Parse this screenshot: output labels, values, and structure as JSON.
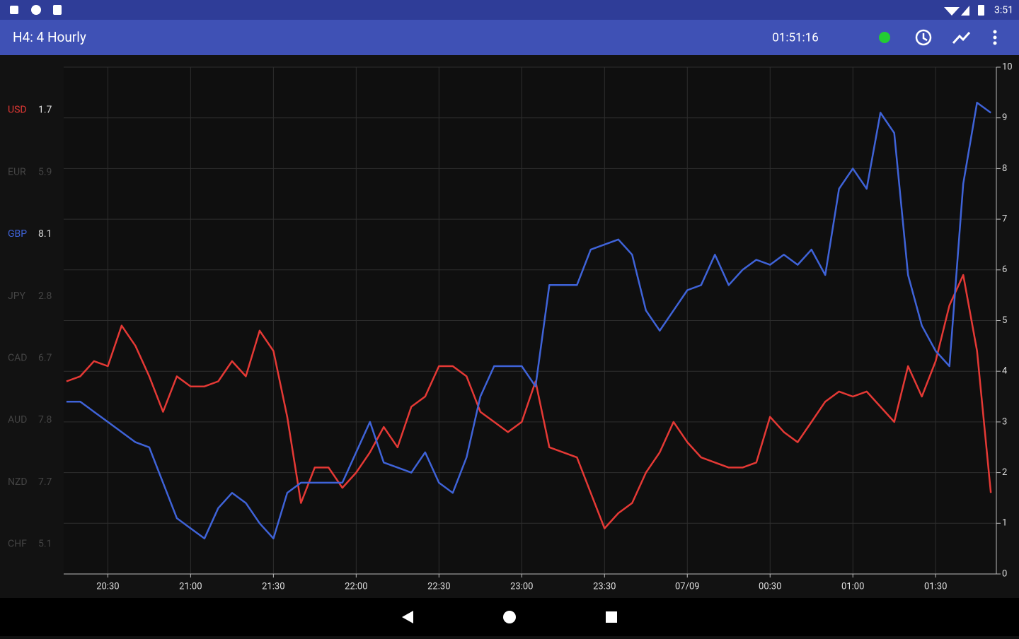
{
  "status_bar": {
    "time": "3:51"
  },
  "app_bar": {
    "title": "H4: 4 Hourly",
    "timer": "01:51:16"
  },
  "currency_list": [
    {
      "code": "USD",
      "value": 1.7,
      "color": "#e53935"
    },
    {
      "code": "EUR",
      "value": 5.9,
      "color": "#444444"
    },
    {
      "code": "GBP",
      "value": 8.1,
      "color": "#3f63d8"
    },
    {
      "code": "JPY",
      "value": 2.8,
      "color": "#444444"
    },
    {
      "code": "CAD",
      "value": 6.7,
      "color": "#444444"
    },
    {
      "code": "AUD",
      "value": 7.8,
      "color": "#444444"
    },
    {
      "code": "NZD",
      "value": 7.7,
      "color": "#444444"
    },
    {
      "code": "CHF",
      "value": 5.1,
      "color": "#444444"
    }
  ],
  "chart_data": {
    "type": "line",
    "x": [
      "20:15",
      "20:20",
      "20:25",
      "20:30",
      "20:35",
      "20:40",
      "20:45",
      "20:50",
      "20:55",
      "21:00",
      "21:05",
      "21:10",
      "21:15",
      "21:20",
      "21:25",
      "21:30",
      "21:35",
      "21:40",
      "21:45",
      "21:50",
      "21:55",
      "22:00",
      "22:05",
      "22:10",
      "22:15",
      "22:20",
      "22:25",
      "22:30",
      "22:35",
      "22:40",
      "22:45",
      "22:50",
      "22:55",
      "23:00",
      "23:05",
      "23:10",
      "23:15",
      "23:20",
      "23:25",
      "23:30",
      "23:35",
      "23:40",
      "23:45",
      "23:50",
      "23:55",
      "00:00",
      "00:05",
      "00:10",
      "00:15",
      "00:20",
      "00:25",
      "00:30",
      "00:35",
      "00:40",
      "00:45",
      "00:50",
      "00:55",
      "01:00",
      "01:05",
      "01:10",
      "01:15",
      "01:20",
      "01:25",
      "01:30",
      "01:35",
      "01:40",
      "01:45",
      "01:50"
    ],
    "series": [
      {
        "color": "#e53935",
        "values": [
          3.8,
          3.9,
          4.2,
          4.1,
          4.9,
          4.5,
          3.9,
          3.2,
          3.9,
          3.7,
          3.7,
          3.8,
          4.2,
          3.9,
          4.8,
          4.4,
          3.1,
          1.4,
          2.1,
          2.1,
          1.7,
          2.0,
          2.4,
          2.9,
          2.5,
          3.3,
          3.5,
          4.1,
          4.1,
          3.9,
          3.2,
          3.0,
          2.8,
          3.0,
          3.8,
          2.5,
          2.4,
          2.3,
          1.6,
          0.9,
          1.2,
          1.4,
          2.0,
          2.4,
          3.0,
          2.6,
          2.3,
          2.2,
          2.1,
          2.1,
          2.2,
          3.1,
          2.8,
          2.6,
          3.0,
          3.4,
          3.6,
          3.5,
          3.6,
          3.3,
          3.0,
          4.1,
          3.5,
          4.2,
          5.3,
          5.9,
          4.4,
          1.6
        ]
      },
      {
        "color": "#3f63d8",
        "values": [
          3.4,
          3.4,
          3.2,
          3.0,
          2.8,
          2.6,
          2.5,
          1.8,
          1.1,
          0.9,
          0.7,
          1.3,
          1.6,
          1.4,
          1.0,
          0.7,
          1.6,
          1.8,
          1.8,
          1.8,
          1.8,
          2.4,
          3.0,
          2.2,
          2.1,
          2.0,
          2.4,
          1.8,
          1.6,
          2.3,
          3.5,
          4.1,
          4.1,
          4.1,
          3.7,
          5.7,
          5.7,
          5.7,
          6.4,
          6.5,
          6.6,
          6.3,
          5.2,
          4.8,
          5.2,
          5.6,
          5.7,
          6.3,
          5.7,
          6.0,
          6.2,
          6.1,
          6.3,
          6.1,
          6.4,
          5.9,
          7.6,
          8.0,
          7.6,
          9.1,
          8.7,
          5.9,
          4.9,
          4.4,
          4.1,
          7.7,
          9.3,
          9.1
        ]
      }
    ],
    "xlim": [
      "20:14",
      "01:52"
    ],
    "xticks": [
      "20:30",
      "21:00",
      "21:30",
      "22:00",
      "22:30",
      "23:00",
      "23:30",
      {
        "value": "00:00",
        "label": "07/09"
      },
      "00:30",
      "01:00",
      "01:30"
    ],
    "ylim": [
      0,
      10
    ],
    "yticks": [
      0,
      1,
      2,
      3,
      4,
      5,
      6,
      7,
      8,
      9,
      10
    ],
    "grid": true
  }
}
